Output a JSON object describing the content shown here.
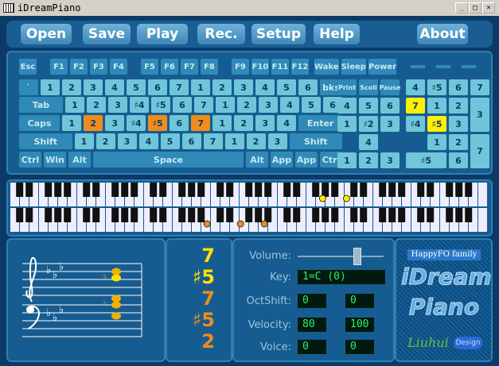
{
  "window": {
    "title": "iDreamPiano"
  },
  "menu": [
    "Open",
    "Save",
    "Play",
    "Rec.",
    "Setup",
    "Help",
    "About"
  ],
  "keyboard": {
    "function_row": [
      "Esc",
      "F1",
      "F2",
      "F3",
      "F4",
      "F5",
      "F6",
      "F7",
      "F8",
      "F9",
      "F10",
      "F11",
      "F12",
      "Wake",
      "Sleep",
      "Power"
    ],
    "rows": [
      [
        "`",
        "1",
        "2",
        "3",
        "4",
        "5",
        "6",
        "7",
        "1",
        "2",
        "3",
        "4",
        "5",
        "6",
        "bks"
      ],
      [
        "Tab",
        "1",
        "2",
        "3",
        "♯4",
        "♯5",
        "6",
        "7",
        "1",
        "2",
        "3",
        "4",
        "5",
        "6"
      ],
      [
        "Caps",
        "1",
        {
          "label": "2",
          "color": "#f08c1c"
        },
        "3",
        "♯4",
        {
          "label": "♯5",
          "color": "#f08c1c"
        },
        "6",
        {
          "label": "7",
          "color": "#f08c1c"
        },
        "1",
        "2",
        "3",
        "4",
        "Enter"
      ],
      [
        "Shift",
        "1",
        "2",
        "3",
        "4",
        "5",
        "6",
        "7",
        "1",
        "2",
        "3",
        "Shift"
      ],
      [
        "Ctrl",
        "Win",
        "Alt",
        "Space",
        "Alt",
        "App",
        "App",
        "Ctrl"
      ]
    ],
    "nav": [
      "Print",
      "Scoll",
      "Pause",
      "4",
      "5",
      "6",
      "1",
      "♯2",
      "3",
      "4",
      "1",
      "2",
      "3"
    ],
    "numpad": [
      "4",
      "♯5",
      "6",
      "7",
      {
        "label": "7",
        "color": "#ffef00"
      },
      "1",
      "2",
      "3",
      "♯4",
      {
        "label": "♯5",
        "color": "#ffef00"
      },
      "3",
      "1",
      "2",
      "7",
      "♯5",
      "6"
    ]
  },
  "notes": [
    {
      "label": "7",
      "color": "#ffe000"
    },
    {
      "label": "♯5",
      "color": "#ffe000"
    },
    {
      "label": "7",
      "color": "#f08c1c"
    },
    {
      "label": "♯5",
      "color": "#f08c1c"
    },
    {
      "label": "2",
      "color": "#f08c1c"
    }
  ],
  "controls": {
    "volume": "Volume:",
    "key": "Key:",
    "key_value": "1=C  (0)",
    "octshift": "OctShift:",
    "octshift_values": [
      "0",
      "0"
    ],
    "velocity": "Velocity:",
    "velocity_values": [
      "80",
      "100"
    ],
    "voice": "Voice:",
    "voice_values": [
      "0",
      "0"
    ]
  },
  "logo": {
    "family": "HappyFO family",
    "line1": "iDream",
    "line2": "Piano",
    "author": "Liuhui",
    "design": "Design"
  }
}
